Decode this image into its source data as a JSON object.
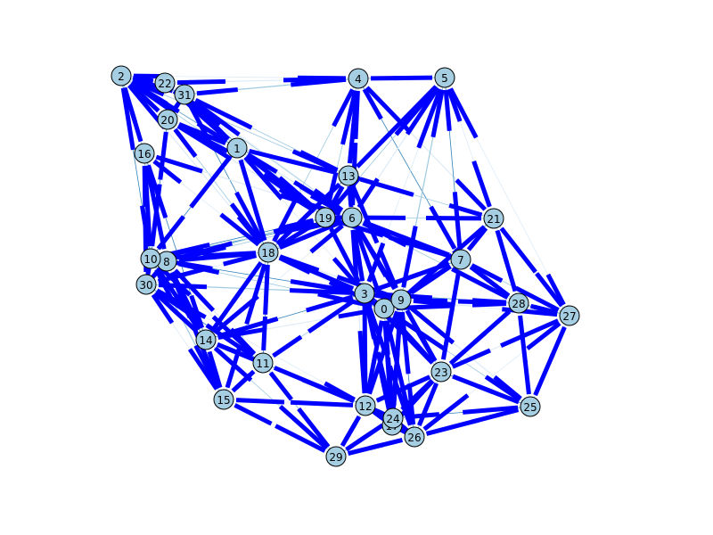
{
  "colors": {
    "background": "#ffffff",
    "node_fill": "#a6cee3",
    "node_stroke": "#000000",
    "arrow_color": "#0000ff",
    "edge_light": "#deebf7",
    "edge_mid": "#9ecae1",
    "edge_dark": "#3182bd"
  },
  "graph": {
    "nodes": [
      {
        "id": "0",
        "label": "0"
      },
      {
        "id": "1",
        "label": "1"
      },
      {
        "id": "2",
        "label": "2"
      },
      {
        "id": "3",
        "label": "3"
      },
      {
        "id": "4",
        "label": "4"
      },
      {
        "id": "5",
        "label": "5"
      },
      {
        "id": "6",
        "label": "6"
      },
      {
        "id": "7",
        "label": "7"
      },
      {
        "id": "8",
        "label": "8"
      },
      {
        "id": "9",
        "label": "9"
      },
      {
        "id": "10",
        "label": "10"
      },
      {
        "id": "11",
        "label": "11"
      },
      {
        "id": "12",
        "label": "12"
      },
      {
        "id": "13",
        "label": "13"
      },
      {
        "id": "14",
        "label": "14"
      },
      {
        "id": "15",
        "label": "15"
      },
      {
        "id": "16",
        "label": "16"
      },
      {
        "id": "17",
        "label": "17"
      },
      {
        "id": "18",
        "label": "18"
      },
      {
        "id": "19",
        "label": "19"
      },
      {
        "id": "20",
        "label": "20"
      },
      {
        "id": "21",
        "label": "21"
      },
      {
        "id": "22",
        "label": "22"
      },
      {
        "id": "23",
        "label": "23"
      },
      {
        "id": "24",
        "label": "24"
      },
      {
        "id": "25",
        "label": "25"
      },
      {
        "id": "26",
        "label": "26"
      },
      {
        "id": "27",
        "label": "27"
      },
      {
        "id": "28",
        "label": "28"
      },
      {
        "id": "29",
        "label": "29"
      },
      {
        "id": "30",
        "label": "30"
      },
      {
        "id": "31",
        "label": "31"
      }
    ],
    "edges": [
      [
        "2",
        "22"
      ],
      [
        "2",
        "31"
      ],
      [
        "2",
        "20"
      ],
      [
        "2",
        "1"
      ],
      [
        "2",
        "16"
      ],
      [
        "2",
        "4"
      ],
      [
        "2",
        "6"
      ],
      [
        "2",
        "19"
      ],
      [
        "2",
        "18"
      ],
      [
        "2",
        "10"
      ],
      [
        "2",
        "13"
      ],
      [
        "22",
        "31"
      ],
      [
        "22",
        "4"
      ],
      [
        "22",
        "6"
      ],
      [
        "22",
        "1"
      ],
      [
        "22",
        "19"
      ],
      [
        "31",
        "4"
      ],
      [
        "31",
        "20"
      ],
      [
        "31",
        "6"
      ],
      [
        "31",
        "13"
      ],
      [
        "31",
        "19"
      ],
      [
        "31",
        "18"
      ],
      [
        "31",
        "1"
      ],
      [
        "20",
        "6"
      ],
      [
        "20",
        "19"
      ],
      [
        "20",
        "18"
      ],
      [
        "20",
        "1"
      ],
      [
        "20",
        "10"
      ],
      [
        "16",
        "10"
      ],
      [
        "16",
        "8"
      ],
      [
        "16",
        "18"
      ],
      [
        "16",
        "30"
      ],
      [
        "16",
        "6"
      ],
      [
        "16",
        "14"
      ],
      [
        "1",
        "19"
      ],
      [
        "1",
        "6"
      ],
      [
        "1",
        "18"
      ],
      [
        "1",
        "13"
      ],
      [
        "1",
        "3"
      ],
      [
        "1",
        "10"
      ],
      [
        "4",
        "5"
      ],
      [
        "4",
        "13"
      ],
      [
        "4",
        "6"
      ],
      [
        "4",
        "19"
      ],
      [
        "4",
        "21"
      ],
      [
        "4",
        "7"
      ],
      [
        "4",
        "18"
      ],
      [
        "5",
        "13"
      ],
      [
        "5",
        "6"
      ],
      [
        "5",
        "19"
      ],
      [
        "5",
        "21"
      ],
      [
        "5",
        "7"
      ],
      [
        "5",
        "9"
      ],
      [
        "5",
        "27"
      ],
      [
        "5",
        "3"
      ],
      [
        "13",
        "6"
      ],
      [
        "13",
        "19"
      ],
      [
        "13",
        "18"
      ],
      [
        "13",
        "21"
      ],
      [
        "13",
        "9"
      ],
      [
        "6",
        "19"
      ],
      [
        "6",
        "21"
      ],
      [
        "6",
        "7"
      ],
      [
        "6",
        "18"
      ],
      [
        "6",
        "3"
      ],
      [
        "6",
        "9"
      ],
      [
        "6",
        "0"
      ],
      [
        "6",
        "28"
      ],
      [
        "6",
        "23"
      ],
      [
        "6",
        "10"
      ],
      [
        "6",
        "8"
      ],
      [
        "6",
        "14"
      ],
      [
        "6",
        "12"
      ],
      [
        "19",
        "18"
      ],
      [
        "19",
        "3"
      ],
      [
        "19",
        "10"
      ],
      [
        "19",
        "8"
      ],
      [
        "19",
        "7"
      ],
      [
        "21",
        "7"
      ],
      [
        "21",
        "27"
      ],
      [
        "21",
        "28"
      ],
      [
        "21",
        "9"
      ],
      [
        "7",
        "28"
      ],
      [
        "7",
        "9"
      ],
      [
        "7",
        "0"
      ],
      [
        "7",
        "27"
      ],
      [
        "7",
        "23"
      ],
      [
        "7",
        "3"
      ],
      [
        "18",
        "10"
      ],
      [
        "18",
        "8"
      ],
      [
        "18",
        "30"
      ],
      [
        "18",
        "3"
      ],
      [
        "18",
        "14"
      ],
      [
        "18",
        "11"
      ],
      [
        "18",
        "15"
      ],
      [
        "18",
        "0"
      ],
      [
        "18",
        "9"
      ],
      [
        "10",
        "8"
      ],
      [
        "10",
        "30"
      ],
      [
        "10",
        "14"
      ],
      [
        "10",
        "15"
      ],
      [
        "10",
        "11"
      ],
      [
        "10",
        "3"
      ],
      [
        "8",
        "30"
      ],
      [
        "8",
        "14"
      ],
      [
        "8",
        "3"
      ],
      [
        "8",
        "0"
      ],
      [
        "8",
        "15"
      ],
      [
        "8",
        "11"
      ],
      [
        "30",
        "14"
      ],
      [
        "30",
        "15"
      ],
      [
        "30",
        "11"
      ],
      [
        "30",
        "3"
      ],
      [
        "30",
        "12"
      ],
      [
        "3",
        "9"
      ],
      [
        "3",
        "0"
      ],
      [
        "3",
        "23"
      ],
      [
        "3",
        "14"
      ],
      [
        "3",
        "11"
      ],
      [
        "3",
        "12"
      ],
      [
        "3",
        "17"
      ],
      [
        "3",
        "24"
      ],
      [
        "3",
        "26"
      ],
      [
        "3",
        "28"
      ],
      [
        "9",
        "0"
      ],
      [
        "9",
        "28"
      ],
      [
        "9",
        "27"
      ],
      [
        "9",
        "23"
      ],
      [
        "9",
        "25"
      ],
      [
        "9",
        "26"
      ],
      [
        "9",
        "17"
      ],
      [
        "9",
        "12"
      ],
      [
        "9",
        "24"
      ],
      [
        "0",
        "23"
      ],
      [
        "0",
        "12"
      ],
      [
        "0",
        "24"
      ],
      [
        "0",
        "17"
      ],
      [
        "0",
        "26"
      ],
      [
        "0",
        "28"
      ],
      [
        "0",
        "25"
      ],
      [
        "0",
        "14"
      ],
      [
        "28",
        "27"
      ],
      [
        "28",
        "23"
      ],
      [
        "28",
        "25"
      ],
      [
        "27",
        "23"
      ],
      [
        "27",
        "25"
      ],
      [
        "27",
        "26"
      ],
      [
        "23",
        "25"
      ],
      [
        "23",
        "26"
      ],
      [
        "23",
        "24"
      ],
      [
        "23",
        "17"
      ],
      [
        "23",
        "12"
      ],
      [
        "25",
        "26"
      ],
      [
        "25",
        "24"
      ],
      [
        "14",
        "11"
      ],
      [
        "14",
        "15"
      ],
      [
        "14",
        "12"
      ],
      [
        "14",
        "29"
      ],
      [
        "11",
        "15"
      ],
      [
        "11",
        "12"
      ],
      [
        "11",
        "29"
      ],
      [
        "15",
        "29"
      ],
      [
        "15",
        "12"
      ],
      [
        "12",
        "24"
      ],
      [
        "12",
        "17"
      ],
      [
        "12",
        "26"
      ],
      [
        "12",
        "29"
      ],
      [
        "24",
        "17"
      ],
      [
        "24",
        "26"
      ],
      [
        "17",
        "26"
      ],
      [
        "26",
        "29"
      ],
      [
        "29",
        "24"
      ]
    ]
  }
}
